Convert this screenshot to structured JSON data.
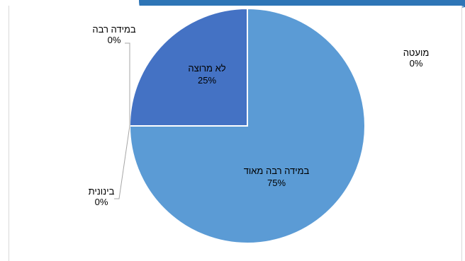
{
  "chart_data": {
    "type": "pie",
    "title": "",
    "slices": [
      {
        "label": "במידה רבה מאוד",
        "value": 75,
        "display": "75%",
        "color": "#5b9bd5"
      },
      {
        "label": "לא מרוצה",
        "value": 25,
        "display": "25%",
        "color": "#4472c4"
      },
      {
        "label": "במידה רבה",
        "value": 0,
        "display": "0%",
        "color": "#ed7d31"
      },
      {
        "label": "בינונית",
        "value": 0,
        "display": "0%",
        "color": "#a5a5a5"
      },
      {
        "label": "מועטה",
        "value": 0,
        "display": "0%",
        "color": "#ffc000"
      }
    ],
    "legend": "none"
  },
  "colors": {
    "top_band": "#2e75b6",
    "top_band_light": "#9dc3e6",
    "frame_border": "#d9d9d9",
    "slice_border": "#ffffff",
    "leader_line": "#a6a6a6"
  }
}
